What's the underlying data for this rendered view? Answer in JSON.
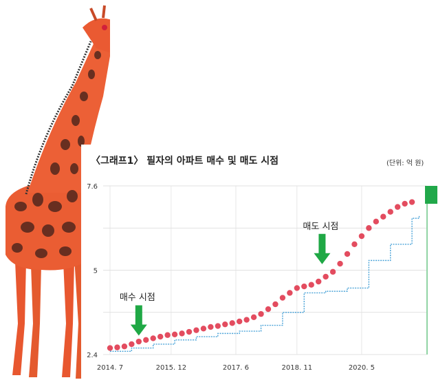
{
  "chart_data": {
    "type": "scatter",
    "title": "〈그래프1〉 필자의 아파트 매수 및 매도 시점",
    "unit": "(단위: 억 원)",
    "x_tick_labels": [
      "2014. 7",
      "2015. 12",
      "2017. 6",
      "2018. 11",
      "2020. 5"
    ],
    "y_tick_labels": [
      "2.4",
      "5",
      "7.6"
    ],
    "ylim": [
      2.4,
      7.6
    ],
    "xlim": [
      "2014-07",
      "2021-11"
    ],
    "grid": true,
    "annotations": [
      {
        "label": "매수 시점",
        "x": "2015-03",
        "y": 2.9
      },
      {
        "label": "매도 시점",
        "x": "2019-06",
        "y": 5.1
      }
    ],
    "series": [
      {
        "color": "#e0384e",
        "x": [
          "2014-07",
          "2014-09",
          "2014-11",
          "2015-01",
          "2015-03",
          "2015-05",
          "2015-07",
          "2015-09",
          "2015-11",
          "2016-01",
          "2016-03",
          "2016-05",
          "2016-07",
          "2016-09",
          "2016-11",
          "2017-01",
          "2017-03",
          "2017-05",
          "2017-07",
          "2017-09",
          "2017-11",
          "2018-01",
          "2018-03",
          "2018-05",
          "2018-07",
          "2018-09",
          "2018-11",
          "2019-01",
          "2019-03",
          "2019-05",
          "2019-07",
          "2019-09",
          "2019-11",
          "2020-01",
          "2020-03",
          "2020-05",
          "2020-07",
          "2020-09",
          "2020-11",
          "2021-01",
          "2021-03",
          "2021-05",
          "2021-07"
        ],
        "y": [
          2.6,
          2.62,
          2.65,
          2.72,
          2.8,
          2.85,
          2.9,
          2.95,
          3.0,
          3.02,
          3.05,
          3.1,
          3.15,
          3.2,
          3.25,
          3.28,
          3.33,
          3.37,
          3.42,
          3.47,
          3.55,
          3.65,
          3.8,
          3.95,
          4.15,
          4.3,
          4.45,
          4.5,
          4.55,
          4.65,
          4.8,
          4.95,
          5.2,
          5.5,
          5.8,
          6.05,
          6.3,
          6.5,
          6.65,
          6.8,
          6.95,
          7.05,
          7.1
        ]
      },
      {
        "color": "#4aa3d8",
        "x": [
          "2014-07",
          "2015-01",
          "2015-07",
          "2016-01",
          "2016-07",
          "2017-01",
          "2017-07",
          "2018-01",
          "2018-07",
          "2019-01",
          "2019-07",
          "2020-01",
          "2020-07",
          "2021-01",
          "2021-07",
          "2021-09"
        ],
        "y": [
          2.5,
          2.6,
          2.72,
          2.85,
          2.95,
          3.05,
          3.12,
          3.3,
          3.7,
          4.3,
          4.35,
          4.45,
          5.3,
          5.8,
          6.6,
          6.7
        ]
      }
    ]
  }
}
